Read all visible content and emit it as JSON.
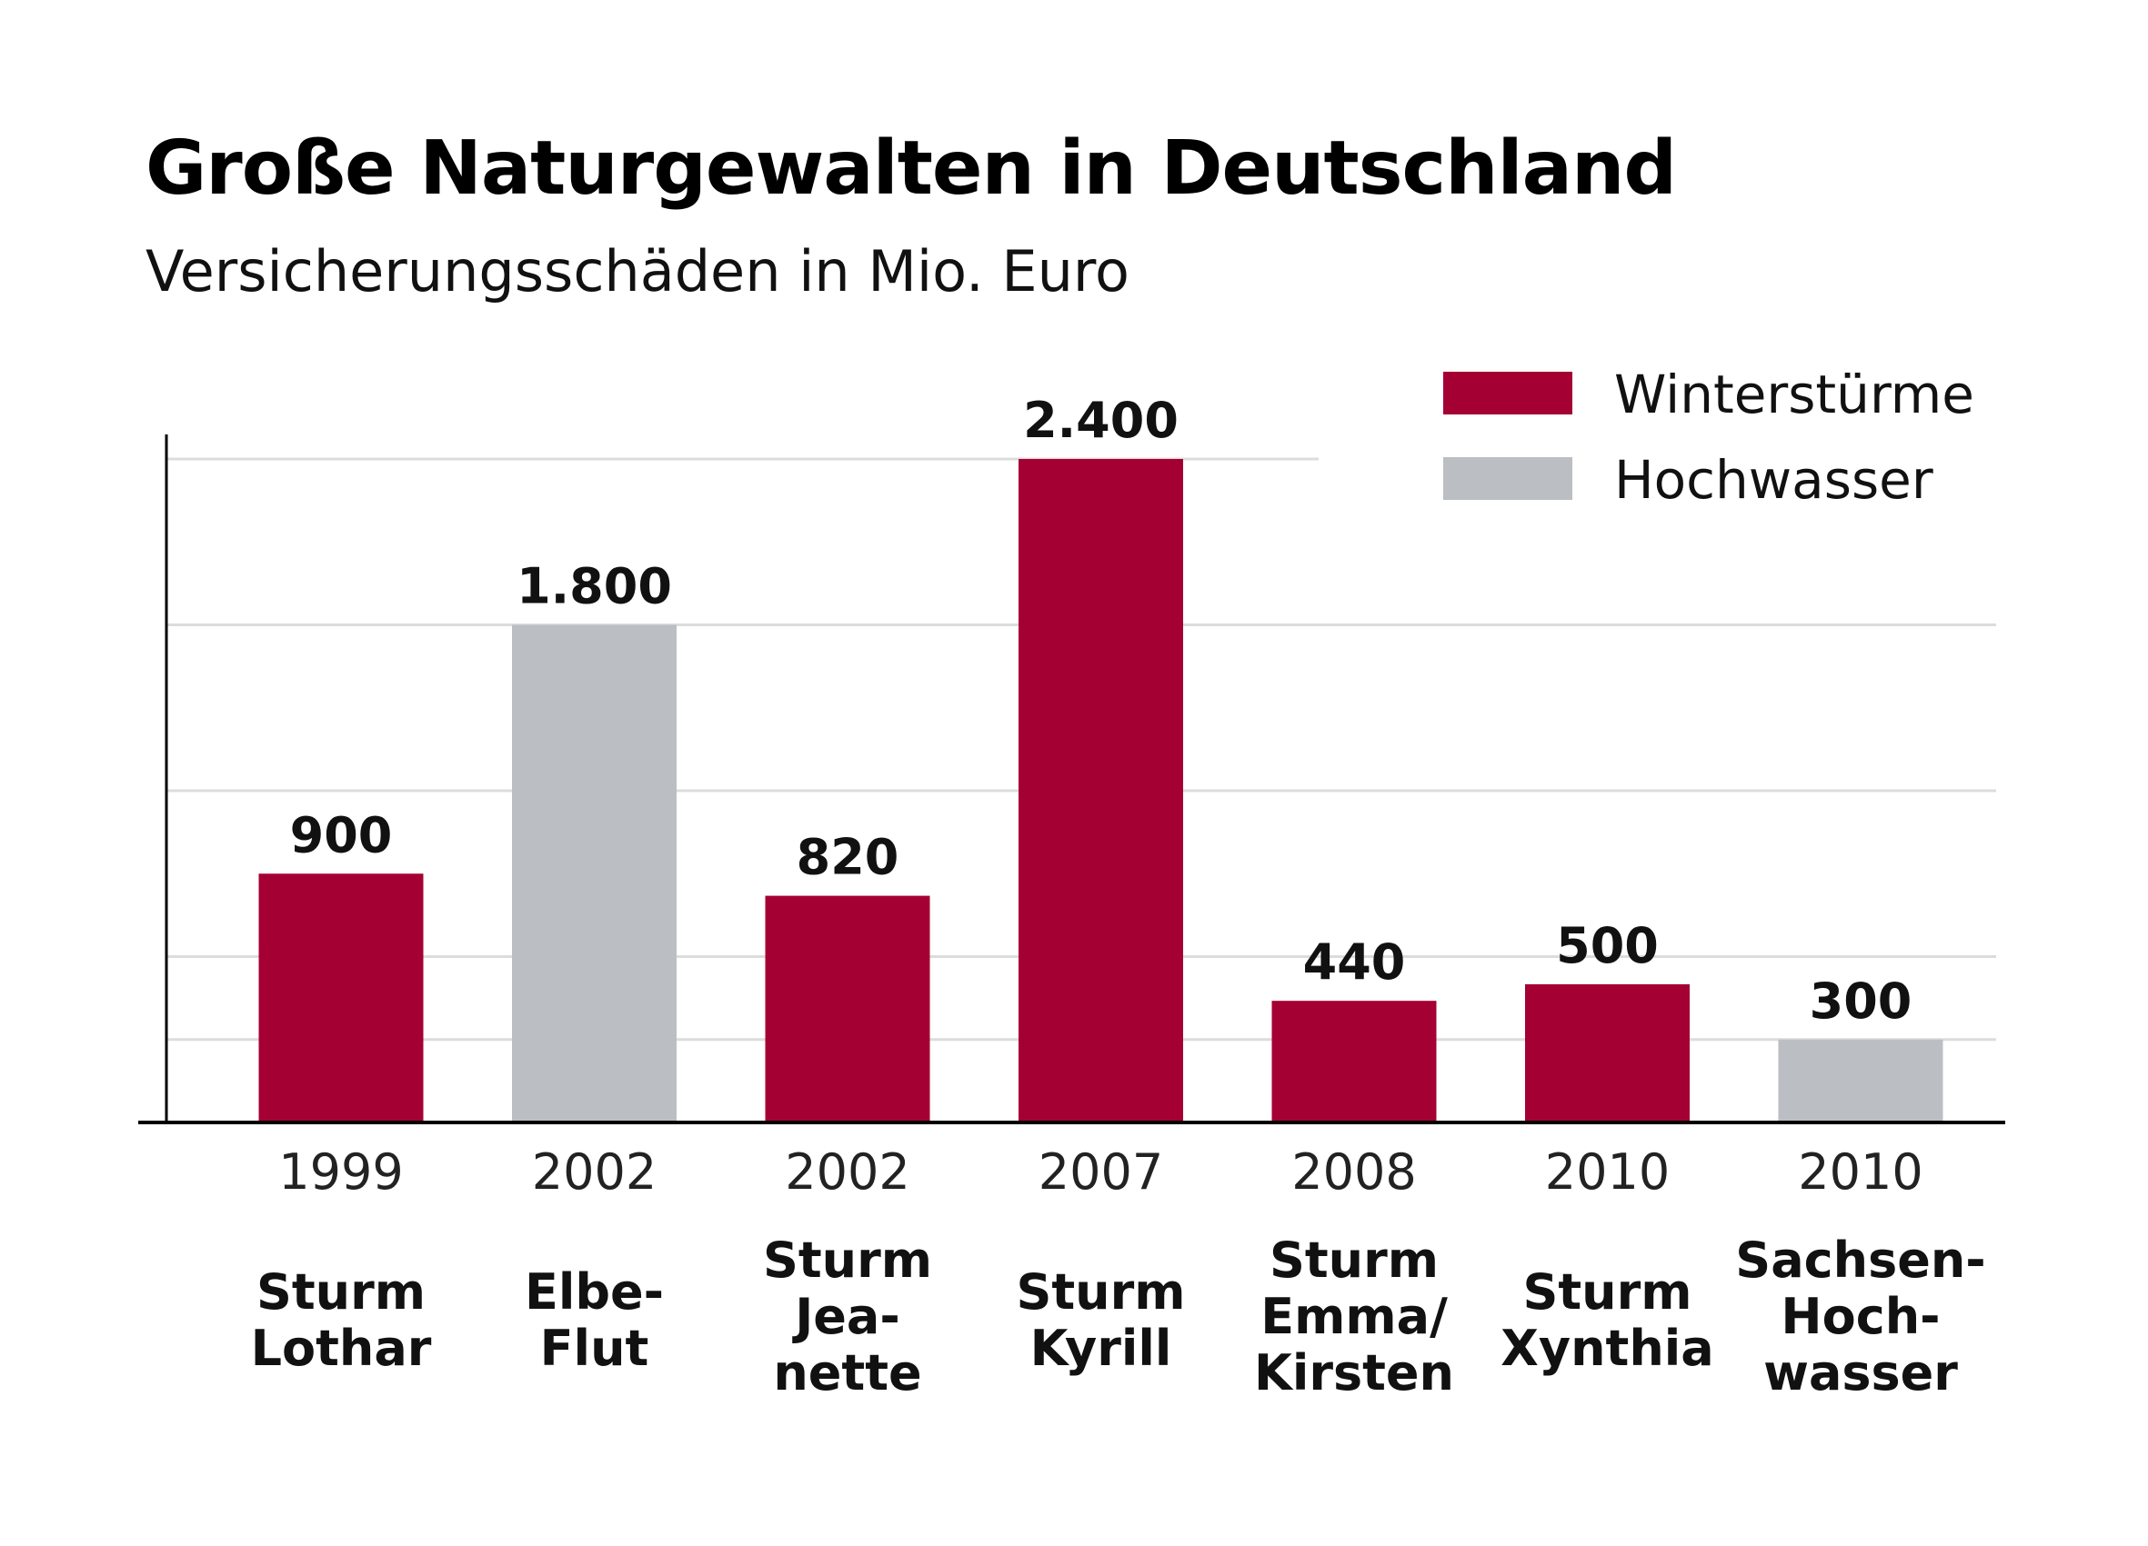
{
  "title": "Große Naturgewalten in Deutschland",
  "subtitle": "Versicherungsschäden in Mio. Euro",
  "colors": {
    "Winterstürme": "#A50034",
    "Hochwasser": "#BBBEC2",
    "gridline": "#DCDCDC",
    "axis": "#000000"
  },
  "chart_data": {
    "type": "bar",
    "title": "Große Naturgewalten in Deutschland",
    "subtitle": "Versicherungsschäden in Mio. Euro",
    "legend": [
      "Winterstürme",
      "Hochwasser"
    ],
    "legend_position": "top-right",
    "ylim": [
      0,
      2500
    ],
    "grid": true,
    "bars": [
      {
        "year": "1999",
        "name_lines": [
          "Sturm",
          "Lothar"
        ],
        "value": 900,
        "value_label": "900",
        "series": "Winterstürme"
      },
      {
        "year": "2002",
        "name_lines": [
          "Elbe-",
          "Flut"
        ],
        "value": 1800,
        "value_label": "1.800",
        "series": "Hochwasser"
      },
      {
        "year": "2002",
        "name_lines": [
          "Sturm",
          "Jea-",
          "nette"
        ],
        "value": 820,
        "value_label": "820",
        "series": "Winterstürme"
      },
      {
        "year": "2007",
        "name_lines": [
          "Sturm",
          "Kyrill"
        ],
        "value": 2400,
        "value_label": "2.400",
        "series": "Winterstürme"
      },
      {
        "year": "2008",
        "name_lines": [
          "Sturm",
          "Emma/",
          "Kirsten"
        ],
        "value": 440,
        "value_label": "440",
        "series": "Winterstürme"
      },
      {
        "year": "2010",
        "name_lines": [
          "Sturm",
          "Xynthia"
        ],
        "value": 500,
        "value_label": "500",
        "series": "Winterstürme"
      },
      {
        "year": "2010",
        "name_lines": [
          "Sachsen-",
          "Hoch-",
          "wasser"
        ],
        "value": 300,
        "value_label": "300",
        "series": "Hochwasser"
      }
    ]
  }
}
